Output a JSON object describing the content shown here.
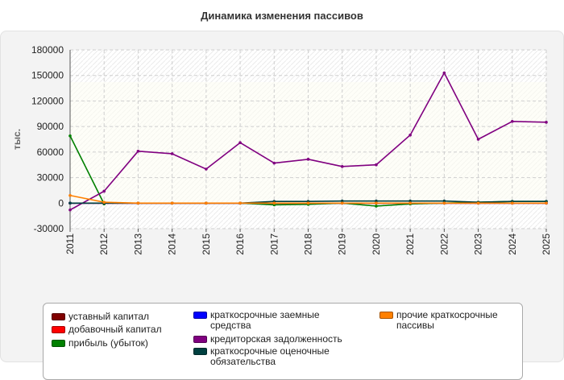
{
  "chart_data": {
    "type": "line",
    "title": "Динамика изменения пассивов",
    "ylabel": "тыс.",
    "xlabel": "",
    "x": [
      "2011",
      "2012",
      "2013",
      "2014",
      "2015",
      "2016",
      "2017",
      "2018",
      "2019",
      "2020",
      "2021",
      "2022",
      "2023",
      "2024",
      "2025"
    ],
    "ylim": [
      -30000,
      180000
    ],
    "yticks": [
      -30000,
      0,
      30000,
      60000,
      90000,
      120000,
      150000,
      180000
    ],
    "grid": true,
    "legend_position": "bottom",
    "series": [
      {
        "name": "уставный капитал",
        "color": "#800000",
        "values": [
          0,
          0,
          0,
          0,
          0,
          0,
          0,
          0,
          0,
          0,
          0,
          0,
          0,
          0,
          0
        ]
      },
      {
        "name": "добавочный капитал",
        "color": "#ff0000",
        "values": [
          0,
          0,
          0,
          0,
          0,
          0,
          0,
          0,
          0,
          0,
          0,
          0,
          0,
          0,
          0
        ]
      },
      {
        "name": "прибыль (убыток)",
        "color": "#008000",
        "values": [
          79000,
          -1000,
          null,
          null,
          null,
          0,
          -2000,
          -1500,
          0,
          -3500,
          -1000,
          0,
          1000,
          2000,
          2000
        ]
      },
      {
        "name": "краткосрочные заемные средства",
        "color": "#0000ff",
        "values": [
          0,
          0,
          0,
          0,
          0,
          0,
          0,
          0,
          0,
          0,
          0,
          0,
          0,
          0,
          0
        ]
      },
      {
        "name": "кредиторская задолженность",
        "color": "#800080",
        "values": [
          -8000,
          14000,
          61000,
          58000,
          40000,
          71000,
          47000,
          51500,
          43000,
          45000,
          80000,
          153000,
          75000,
          96000,
          95000
        ]
      },
      {
        "name": "краткосрочные оценочные обязательства",
        "color": "#004040",
        "values": [
          0,
          0,
          0,
          0,
          0,
          0,
          2000,
          2000,
          2500,
          2500,
          2500,
          2500,
          1000,
          2000,
          2000
        ]
      },
      {
        "name": "прочие краткосрочные пассивы",
        "color": "#ff8000",
        "values": [
          9000,
          1000,
          0,
          0,
          0,
          0,
          0,
          0,
          0,
          0,
          0,
          0,
          0,
          0,
          0
        ]
      }
    ]
  }
}
